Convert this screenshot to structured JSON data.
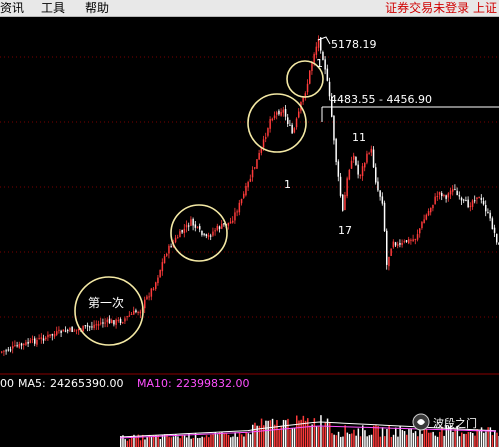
{
  "menu": {
    "items": [
      "资讯",
      "工具",
      "帮助"
    ],
    "login_status": "证券交易未登录 上证"
  },
  "annotations": {
    "peak_value": "5178.19",
    "level_range": "4483.55 - 4456.90",
    "first_label": "第一次",
    "num_1a": "1",
    "num_1b": "1",
    "num_11": "11",
    "num_17": "17"
  },
  "indicator": {
    "left_value": "00",
    "ma5_label": "MA5:",
    "ma5_value": "24265390.00",
    "ma10_label": "MA10:",
    "ma10_value": "22399832.00"
  },
  "watermark": {
    "text": "波段之门"
  },
  "colors": {
    "up": "#ff3b3b",
    "down": "#ffffff",
    "ma5": "#ffffff",
    "ma10": "#ff50ff",
    "circle": "#f4e9a5",
    "grid": "#7a0000",
    "level_line": "#ffffff"
  }
}
